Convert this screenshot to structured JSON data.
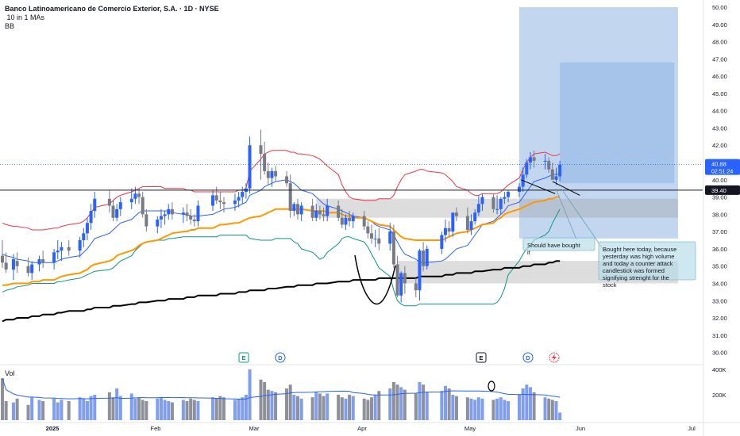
{
  "header": {
    "title": "Banco Latinoamericano de Comercio Exterior, S.A. · 1D · NYSE",
    "indicator_1": "10 in 1 MAs",
    "indicator_2": "BB"
  },
  "volume_pane": {
    "label": "Vol",
    "ticks": [
      "400K",
      "200K"
    ]
  },
  "price_axis": {
    "ticks": [
      "50.00",
      "49.00",
      "48.00",
      "47.00",
      "46.00",
      "45.00",
      "44.00",
      "43.00",
      "42.00",
      "41.00",
      "40.00",
      "39.00",
      "38.00",
      "37.00",
      "36.00",
      "35.00",
      "34.00",
      "33.00",
      "32.00",
      "31.00",
      "30.00"
    ],
    "last_price": "40.88",
    "countdown": "02:51:24",
    "horizontal_line_price": "39.40"
  },
  "time_axis": {
    "labels": [
      "2025",
      "Feb",
      "Mar",
      "Apr",
      "May",
      "Jun",
      "Jul"
    ]
  },
  "annotations": {
    "note_1": "Should have bought it",
    "note_2": "Bought here today, because yesterday was high volume and today a counter attack candlestick was formed signifying strenght for the stock"
  },
  "event_markers": [
    "E",
    "D",
    "E",
    "D"
  ],
  "colors": {
    "bull": "#2962ff",
    "bear": "#787b86",
    "bb_upper": "#f23645",
    "bb_lower": "#089981",
    "ma_fast": "#2962ff",
    "ma_orange": "#ff9800",
    "ma_long": "#000000",
    "projection": "#90b4e4"
  },
  "chart_data": {
    "type": "candlestick",
    "symbol": "Banco Latinoamericano de Comercio Exterior, S.A.",
    "interval": "1D",
    "exchange": "NYSE",
    "ylim": [
      29.7,
      50.2
    ],
    "x": [
      "2024-12-23",
      "2024-12-24",
      "2024-12-26",
      "2024-12-27",
      "2024-12-30",
      "2024-12-31",
      "2025-01-02",
      "2025-01-03",
      "2025-01-06",
      "2025-01-07",
      "2025-01-08",
      "2025-01-10",
      "2025-01-13",
      "2025-01-14",
      "2025-01-15",
      "2025-01-16",
      "2025-01-17",
      "2025-01-21",
      "2025-01-22",
      "2025-01-23",
      "2025-01-24",
      "2025-01-27",
      "2025-01-28",
      "2025-01-29",
      "2025-01-30",
      "2025-01-31",
      "2025-02-03",
      "2025-02-04",
      "2025-02-05",
      "2025-02-06",
      "2025-02-07",
      "2025-02-10",
      "2025-02-11",
      "2025-02-12",
      "2025-02-13",
      "2025-02-14",
      "2025-02-18",
      "2025-02-19",
      "2025-02-20",
      "2025-02-21",
      "2025-02-24",
      "2025-02-25",
      "2025-02-26",
      "2025-02-27",
      "2025-02-28",
      "2025-03-03",
      "2025-03-04",
      "2025-03-05",
      "2025-03-06",
      "2025-03-07",
      "2025-03-10",
      "2025-03-11",
      "2025-03-12",
      "2025-03-13",
      "2025-03-14",
      "2025-03-17",
      "2025-03-18",
      "2025-03-19",
      "2025-03-20",
      "2025-03-21",
      "2025-03-24",
      "2025-03-25",
      "2025-03-26",
      "2025-03-27",
      "2025-03-28",
      "2025-03-31",
      "2025-04-01",
      "2025-04-02",
      "2025-04-03",
      "2025-04-04",
      "2025-04-07",
      "2025-04-08",
      "2025-04-09",
      "2025-04-10",
      "2025-04-11",
      "2025-04-14",
      "2025-04-15",
      "2025-04-16",
      "2025-04-17",
      "2025-04-21",
      "2025-04-22",
      "2025-04-23",
      "2025-04-24",
      "2025-04-25",
      "2025-04-28",
      "2025-04-29",
      "2025-04-30",
      "2025-05-01",
      "2025-05-02",
      "2025-05-05",
      "2025-05-06",
      "2025-05-07",
      "2025-05-08",
      "2025-05-09",
      "2025-05-12",
      "2025-05-13",
      "2025-05-14",
      "2025-05-15",
      "2025-05-16",
      "2025-05-19",
      "2025-05-20",
      "2025-05-21",
      "2025-05-22",
      "2025-05-23"
    ],
    "open": [
      35.6,
      35.2,
      34.8,
      35.3,
      35.0,
      34.6,
      35.1,
      35.4,
      35.2,
      35.8,
      35.9,
      36.1,
      35.9,
      36.5,
      36.9,
      37.5,
      38.2,
      38.9,
      38.5,
      37.8,
      38.3,
      38.7,
      38.9,
      39.2,
      39.0,
      38.0,
      37.3,
      37.7,
      37.9,
      38.0,
      38.3,
      38.0,
      38.1,
      37.9,
      37.7,
      37.6,
      38.5,
      39.1,
      38.8,
      38.7,
      38.6,
      38.8,
      39.0,
      39.3,
      39.5,
      42.0,
      41.5,
      40.5,
      40.1,
      40.5,
      40.2,
      39.8,
      38.2,
      38.6,
      38.0,
      38.5,
      37.8,
      38.2,
      38.0,
      37.9,
      38.5,
      37.8,
      37.4,
      37.8,
      37.6,
      37.9,
      37.3,
      36.9,
      36.6,
      36.6,
      36.3,
      37.0,
      35.1,
      33.3,
      34.6,
      34.0,
      33.6,
      35.9,
      35.0,
      36.0,
      36.8,
      37.2,
      37.0,
      38.1,
      37.9,
      37.1,
      37.6,
      38.1,
      38.6,
      39.0,
      38.3,
      38.3,
      38.9,
      39.0,
      39.3,
      39.6,
      40.3,
      41.0,
      41.3,
      41.1,
      41.1,
      40.6,
      40.0,
      40.2
    ],
    "high": [
      36.5,
      35.8,
      35.7,
      35.8,
      35.5,
      35.3,
      35.6,
      35.9,
      36.0,
      36.5,
      36.4,
      36.5,
      36.7,
      37.2,
      37.8,
      38.6,
      39.3,
      39.4,
      38.8,
      38.6,
      39.0,
      39.5,
      39.6,
      39.5,
      39.3,
      38.3,
      37.9,
      38.3,
      38.2,
      38.6,
      38.7,
      38.4,
      38.6,
      38.3,
      38.0,
      38.8,
      39.4,
      39.6,
      39.3,
      39.0,
      39.2,
      39.3,
      39.6,
      39.8,
      42.5,
      42.9,
      42.2,
      41.0,
      40.7,
      40.8,
      40.5,
      40.3,
      38.7,
      38.9,
      38.7,
      38.9,
      38.6,
      38.5,
      38.4,
      38.9,
      38.8,
      38.3,
      38.0,
      38.2,
      38.1,
      38.2,
      37.6,
      37.4,
      37.1,
      37.2,
      37.5,
      37.4,
      35.6,
      34.7,
      35.0,
      34.3,
      36.0,
      36.4,
      36.2,
      37.0,
      37.7,
      37.6,
      38.1,
      38.4,
      38.4,
      38.0,
      38.3,
      39.1,
      39.2,
      39.2,
      39.1,
      39.0,
      39.3,
      39.4,
      39.8,
      40.7,
      41.2,
      41.6,
      41.7,
      41.5,
      41.3,
      41.0,
      40.7,
      41.1
    ],
    "low": [
      34.9,
      34.6,
      34.2,
      34.6,
      34.4,
      34.2,
      34.7,
      34.9,
      34.8,
      35.4,
      35.3,
      35.6,
      35.5,
      36.1,
      36.5,
      37.1,
      37.8,
      38.1,
      37.6,
      37.6,
      37.9,
      38.3,
      38.6,
      38.6,
      37.8,
      37.0,
      36.9,
      37.2,
      37.4,
      37.7,
      37.7,
      37.5,
      37.6,
      37.4,
      37.3,
      37.3,
      38.2,
      38.6,
      38.3,
      38.1,
      38.2,
      38.4,
      38.6,
      38.9,
      39.2,
      40.0,
      40.3,
      39.7,
      39.6,
      39.9,
      39.6,
      37.8,
      37.9,
      37.7,
      37.6,
      37.6,
      37.6,
      37.7,
      37.6,
      37.6,
      37.6,
      37.2,
      37.1,
      37.3,
      37.2,
      37.1,
      36.6,
      36.3,
      36.1,
      35.9,
      35.9,
      34.9,
      33.2,
      32.9,
      33.4,
      33.2,
      33.0,
      34.7,
      34.8,
      35.7,
      36.4,
      36.7,
      36.7,
      37.6,
      36.9,
      36.8,
      37.4,
      37.9,
      38.2,
      38.1,
      38.0,
      38.0,
      38.6,
      38.7,
      39.0,
      39.3,
      40.1,
      40.6,
      40.7,
      40.6,
      40.4,
      40.1,
      39.7,
      39.9
    ],
    "close": [
      35.2,
      34.8,
      35.4,
      35.0,
      34.6,
      35.1,
      35.4,
      35.2,
      35.8,
      35.9,
      36.1,
      35.9,
      36.5,
      36.9,
      37.5,
      38.2,
      38.9,
      38.5,
      37.8,
      38.3,
      38.7,
      38.9,
      39.2,
      39.0,
      38.0,
      37.3,
      37.7,
      37.9,
      38.0,
      38.3,
      38.0,
      38.1,
      37.9,
      37.7,
      37.6,
      38.5,
      39.1,
      38.8,
      38.7,
      38.6,
      38.8,
      39.0,
      39.3,
      39.5,
      42.0,
      41.5,
      40.5,
      40.1,
      40.5,
      40.2,
      39.8,
      38.2,
      38.6,
      38.0,
      38.5,
      37.8,
      38.2,
      38.0,
      37.9,
      38.5,
      37.8,
      37.4,
      37.8,
      37.6,
      37.9,
      37.3,
      36.9,
      36.6,
      36.6,
      36.3,
      37.0,
      35.1,
      33.3,
      34.6,
      34.0,
      33.6,
      35.9,
      35.0,
      36.0,
      36.8,
      37.2,
      37.0,
      38.1,
      37.9,
      37.1,
      37.6,
      38.1,
      38.6,
      39.0,
      38.3,
      38.3,
      38.9,
      39.0,
      39.3,
      39.6,
      40.3,
      41.0,
      41.3,
      41.1,
      41.1,
      40.6,
      40.0,
      40.2,
      40.88
    ],
    "volume_k": [
      330,
      150,
      140,
      170,
      120,
      180,
      160,
      150,
      170,
      140,
      160,
      150,
      180,
      170,
      150,
      190,
      200,
      220,
      180,
      250,
      190,
      210,
      170,
      180,
      160,
      150,
      170,
      180,
      160,
      150,
      140,
      160,
      150,
      170,
      160,
      150,
      180,
      170,
      190,
      180,
      160,
      170,
      180,
      200,
      400,
      320,
      300,
      240,
      230,
      220,
      250,
      280,
      200,
      190,
      170,
      180,
      220,
      210,
      190,
      210,
      200,
      180,
      170,
      200,
      190,
      170,
      160,
      180,
      200,
      230,
      250,
      300,
      280,
      260,
      240,
      210,
      300,
      280,
      220,
      230,
      270,
      250,
      200,
      190,
      180,
      170,
      160,
      180,
      170,
      160,
      170,
      180,
      160,
      150,
      200,
      250,
      280,
      260,
      220,
      180,
      170,
      160,
      150,
      60
    ],
    "bb_upper": [
      37.5,
      37.4,
      37.3,
      37.3,
      37.2,
      37.1,
      37.1,
      37.1,
      37.2,
      37.2,
      37.3,
      37.4,
      37.5,
      37.6,
      37.8,
      38.1,
      38.4,
      38.6,
      38.8,
      39.0,
      39.1,
      39.3,
      39.4,
      39.5,
      39.6,
      39.6,
      39.6,
      39.6,
      39.5,
      39.5,
      39.5,
      39.5,
      39.4,
      39.4,
      39.3,
      39.3,
      39.3,
      39.3,
      39.3,
      39.3,
      39.3,
      39.4,
      39.4,
      39.5,
      40.5,
      41.2,
      41.5,
      41.6,
      41.7,
      41.7,
      41.7,
      41.6,
      41.6,
      41.5,
      41.5,
      41.4,
      41.3,
      41.2,
      41.0,
      40.8,
      40.3,
      39.7,
      39.3,
      39.0,
      38.9,
      38.8,
      38.8,
      38.8,
      38.8,
      38.9,
      38.9,
      39.1,
      39.6,
      40.0,
      40.3,
      40.5,
      40.6,
      40.6,
      40.5,
      40.4,
      40.3,
      40.1,
      39.9,
      39.6,
      39.4,
      39.2,
      39.1,
      39.1,
      39.2,
      39.2,
      39.2,
      39.3,
      39.5,
      39.7,
      40.1,
      40.6,
      41.0,
      41.3,
      41.5,
      41.6,
      41.5,
      41.4,
      41.4,
      41.5
    ],
    "bb_lower": [
      33.5,
      33.6,
      33.7,
      33.8,
      33.9,
      34.0,
      34.0,
      34.0,
      34.0,
      34.1,
      34.1,
      34.2,
      34.3,
      34.4,
      34.5,
      34.6,
      34.7,
      34.8,
      34.9,
      35.1,
      35.3,
      35.6,
      35.9,
      36.1,
      36.3,
      36.4,
      36.5,
      36.5,
      36.5,
      36.6,
      36.6,
      36.7,
      36.7,
      36.7,
      36.7,
      36.7,
      36.7,
      36.7,
      36.8,
      36.8,
      36.8,
      36.8,
      36.8,
      36.8,
      36.6,
      36.5,
      36.5,
      36.5,
      36.5,
      36.6,
      36.6,
      36.6,
      36.4,
      36.3,
      36.0,
      35.8,
      35.6,
      35.4,
      35.5,
      35.8,
      36.3,
      36.6,
      36.7,
      36.7,
      36.6,
      36.4,
      36.1,
      35.7,
      35.3,
      34.9,
      34.4,
      33.6,
      33.0,
      32.8,
      32.7,
      32.7,
      32.8,
      32.8,
      32.8,
      32.8,
      32.8,
      32.8,
      32.8,
      32.8,
      32.8,
      32.8,
      32.8,
      32.8,
      32.8,
      32.8,
      32.9,
      33.2,
      33.7,
      34.5,
      35.3,
      35.7,
      36.0,
      36.2,
      36.5,
      36.8,
      37.0,
      37.5,
      37.9,
      38.3
    ],
    "ma_fast": [
      35.7,
      35.6,
      35.5,
      35.4,
      35.3,
      35.2,
      35.2,
      35.2,
      35.2,
      35.3,
      35.4,
      35.5,
      35.6,
      35.8,
      36.0,
      36.3,
      36.6,
      36.9,
      37.1,
      37.3,
      37.5,
      37.7,
      37.9,
      38.1,
      38.2,
      38.2,
      38.2,
      38.2,
      38.2,
      38.2,
      38.1,
      38.0,
      38.0,
      37.9,
      37.9,
      37.9,
      38.0,
      38.1,
      38.2,
      38.3,
      38.4,
      38.5,
      38.6,
      38.7,
      39.1,
      39.4,
      39.6,
      39.7,
      39.8,
      39.9,
      40.0,
      39.9,
      39.8,
      39.6,
      39.4,
      39.2,
      39.0,
      38.8,
      38.6,
      38.5,
      38.3,
      38.2,
      38.1,
      38.0,
      37.9,
      37.8,
      37.7,
      37.6,
      37.4,
      37.3,
      37.1,
      36.8,
      36.4,
      36.0,
      35.7,
      35.4,
      35.2,
      35.2,
      35.2,
      35.3,
      35.4,
      35.6,
      35.8,
      36.0,
      36.2,
      36.5,
      36.8,
      37.1,
      37.4,
      37.6,
      37.8,
      38.0,
      38.2,
      38.5,
      38.7,
      39.0,
      39.3,
      39.6,
      39.9,
      40.1,
      40.2,
      40.3,
      40.3,
      40.4
    ],
    "ma_orange": [
      33.9,
      33.9,
      34.0,
      34.0,
      34.0,
      34.1,
      34.1,
      34.2,
      34.2,
      34.3,
      34.4,
      34.5,
      34.6,
      34.7,
      34.8,
      35.0,
      35.1,
      35.3,
      35.4,
      35.6,
      35.7,
      35.9,
      36.0,
      36.2,
      36.3,
      36.4,
      36.5,
      36.6,
      36.7,
      36.8,
      36.9,
      37.0,
      37.0,
      37.1,
      37.1,
      37.2,
      37.2,
      37.3,
      37.4,
      37.4,
      37.5,
      37.5,
      37.6,
      37.7,
      37.8,
      37.9,
      38.0,
      38.1,
      38.2,
      38.3,
      38.3,
      38.3,
      38.3,
      38.3,
      38.3,
      38.2,
      38.2,
      38.2,
      38.2,
      38.1,
      38.1,
      38.0,
      37.9,
      37.9,
      37.8,
      37.8,
      37.7,
      37.6,
      37.5,
      37.4,
      37.3,
      37.1,
      36.9,
      36.7,
      36.6,
      36.5,
      36.5,
      36.5,
      36.5,
      36.5,
      36.6,
      36.7,
      36.8,
      36.9,
      37.0,
      37.1,
      37.2,
      37.3,
      37.4,
      37.5,
      37.7,
      37.8,
      38.0,
      38.1,
      38.3,
      38.4,
      38.5,
      38.6,
      38.7,
      38.8,
      38.9,
      38.9,
      39.0,
      39.0
    ],
    "ma_long": [
      31.8,
      31.9,
      31.9,
      32.0,
      32.0,
      32.1,
      32.1,
      32.2,
      32.2,
      32.3,
      32.3,
      32.4,
      32.4,
      32.4,
      32.5,
      32.5,
      32.6,
      32.6,
      32.7,
      32.7,
      32.7,
      32.8,
      32.8,
      32.9,
      32.9,
      32.9,
      33.0,
      33.0,
      33.0,
      33.1,
      33.1,
      33.1,
      33.2,
      33.2,
      33.2,
      33.3,
      33.3,
      33.3,
      33.4,
      33.4,
      33.4,
      33.5,
      33.5,
      33.5,
      33.6,
      33.6,
      33.6,
      33.7,
      33.7,
      33.7,
      33.8,
      33.8,
      33.8,
      33.9,
      33.9,
      33.9,
      34.0,
      34.0,
      34.0,
      34.0,
      34.1,
      34.1,
      34.1,
      34.1,
      34.2,
      34.2,
      34.2,
      34.2,
      34.2,
      34.3,
      34.3,
      34.3,
      34.3,
      34.3,
      34.3,
      34.3,
      34.4,
      34.4,
      34.4,
      34.4,
      34.5,
      34.5,
      34.5,
      34.6,
      34.6,
      34.6,
      34.7,
      34.7,
      34.7,
      34.8,
      34.8,
      34.8,
      34.9,
      34.9,
      34.9,
      35.0,
      35.0,
      35.0,
      35.1,
      35.1,
      35.2,
      35.2,
      35.3,
      35.3
    ],
    "zones": [
      {
        "type": "projection",
        "from": "2025-05-12",
        "to": "2025-06-24",
        "low": 36.6,
        "high": 50.0
      },
      {
        "type": "projection",
        "from": "2025-05-23",
        "to": "2025-06-23",
        "low": 39.8,
        "high": 46.8
      },
      {
        "type": "support",
        "from": "2025-03-18",
        "to": "2025-06-24",
        "low": 37.8,
        "high": 38.9
      },
      {
        "type": "support",
        "from": "2025-04-09",
        "to": "2025-06-24",
        "low": 34.0,
        "high": 35.3
      }
    ],
    "horizontal_line": 39.4
  }
}
